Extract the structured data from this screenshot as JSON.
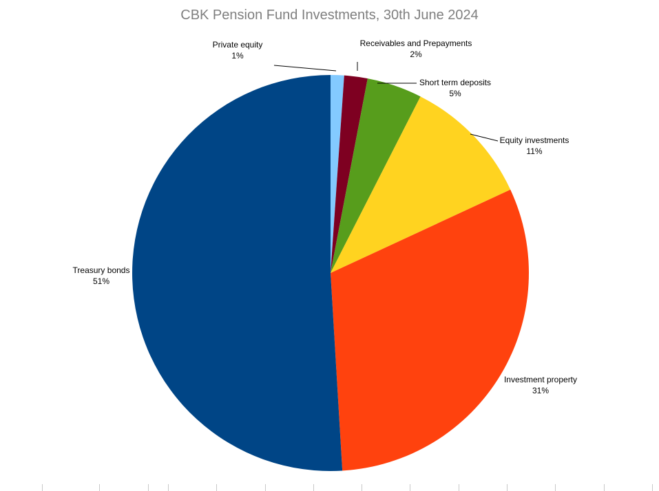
{
  "chart_data": {
    "type": "pie",
    "title": "CBK Pension Fund Investments, 30th June 2024",
    "start_angle": "12 o'clock",
    "direction": "clockwise",
    "legend": "none",
    "slices": [
      {
        "label": "Private equity",
        "value": 1.1,
        "percent_label": "1%",
        "color": "#83caff"
      },
      {
        "label": "Receivables and Prepayments",
        "value": 1.9,
        "percent_label": "2%",
        "color": "#7e0021"
      },
      {
        "label": "Short term deposits",
        "value": 4.5,
        "percent_label": "5%",
        "color": "#579d1c"
      },
      {
        "label": "Equity investments",
        "value": 10.6,
        "percent_label": "11%",
        "color": "#ffd320"
      },
      {
        "label": "Investment property",
        "value": 31.0,
        "percent_label": "31%",
        "color": "#ff420e"
      },
      {
        "label": "Treasury bonds",
        "value": 51.0,
        "percent_label": "51%",
        "color": "#004586"
      }
    ]
  }
}
